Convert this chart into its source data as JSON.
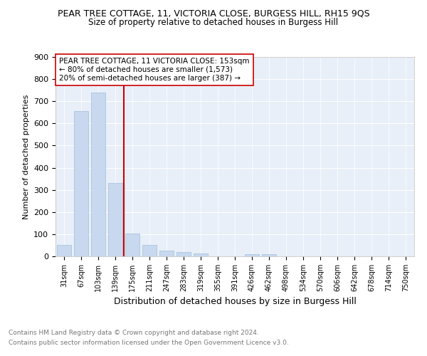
{
  "title": "PEAR TREE COTTAGE, 11, VICTORIA CLOSE, BURGESS HILL, RH15 9QS",
  "subtitle": "Size of property relative to detached houses in Burgess Hill",
  "xlabel": "Distribution of detached houses by size in Burgess Hill",
  "ylabel": "Number of detached properties",
  "bar_color": "#c8d8ee",
  "bar_edgecolor": "#a0bedd",
  "bg_color": "#e8eff8",
  "categories": [
    "31sqm",
    "67sqm",
    "103sqm",
    "139sqm",
    "175sqm",
    "211sqm",
    "247sqm",
    "283sqm",
    "319sqm",
    "355sqm",
    "391sqm",
    "426sqm",
    "462sqm",
    "498sqm",
    "534sqm",
    "570sqm",
    "606sqm",
    "642sqm",
    "678sqm",
    "714sqm",
    "750sqm"
  ],
  "values": [
    50,
    655,
    738,
    330,
    103,
    50,
    27,
    18,
    13,
    0,
    0,
    10,
    10,
    0,
    0,
    0,
    0,
    0,
    0,
    0,
    0
  ],
  "vline_x": 3.5,
  "vline_color": "#cc0000",
  "ylim": [
    0,
    900
  ],
  "yticks": [
    0,
    100,
    200,
    300,
    400,
    500,
    600,
    700,
    800,
    900
  ],
  "annotation_title": "PEAR TREE COTTAGE, 11 VICTORIA CLOSE: 153sqm",
  "annotation_line1": "← 80% of detached houses are smaller (1,573)",
  "annotation_line2": "20% of semi-detached houses are larger (387) →",
  "footnote1": "Contains HM Land Registry data © Crown copyright and database right 2024.",
  "footnote2": "Contains public sector information licensed under the Open Government Licence v3.0."
}
